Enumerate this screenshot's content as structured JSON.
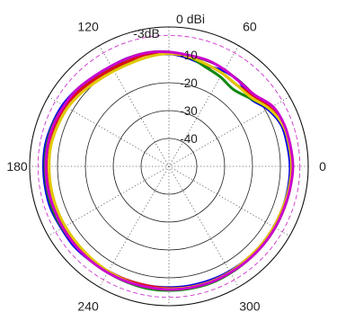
{
  "chart_data": {
    "type": "polar-line",
    "unit_label": "0 dBi",
    "r_range": [
      -50,
      0
    ],
    "r_ticks": [
      -40,
      -30,
      -20,
      -10
    ],
    "r_tick_labels": [
      "-40",
      "-30",
      "-20",
      "-10"
    ],
    "angle_ticks": [
      0,
      60,
      120,
      180,
      240,
      300
    ],
    "angle_tick_labels": [
      "0",
      "60",
      "120",
      "180",
      "240",
      "300"
    ],
    "grid": true,
    "reference": {
      "label": "-3dB",
      "value": -3,
      "color": "#cc33cc"
    },
    "series": [
      {
        "color": "#0000ee",
        "angles": [
          0,
          10,
          20,
          30,
          40,
          50,
          60,
          70,
          80,
          90,
          100,
          110,
          120,
          130,
          140,
          150,
          160,
          170,
          180,
          190,
          200,
          210,
          220,
          230,
          240,
          250,
          260,
          270,
          280,
          290,
          300,
          310,
          320,
          330,
          340,
          350
        ],
        "values": [
          -6.5,
          -6.8,
          -7,
          -9,
          -12,
          -10.5,
          -10.5,
          -11.5,
          -10.5,
          -9.5,
          -9,
          -8.5,
          -8.5,
          -8,
          -7,
          -6,
          -5.5,
          -5,
          -5,
          -5,
          -5,
          -5.5,
          -5.5,
          -6,
          -6.5,
          -6.5,
          -6.5,
          -6.5,
          -6.5,
          -6.5,
          -6.5,
          -6.5,
          -6.5,
          -6.5,
          -6.5,
          -6.5
        ]
      },
      {
        "color": "#118811",
        "angles": [
          0,
          10,
          20,
          30,
          40,
          50,
          60,
          70,
          80,
          90,
          100,
          110,
          120,
          130,
          140,
          150,
          160,
          170,
          180,
          190,
          200,
          210,
          220,
          230,
          240,
          250,
          260,
          270,
          280,
          290,
          300,
          310,
          320,
          330,
          340,
          350
        ],
        "values": [
          -5.8,
          -6,
          -6.5,
          -8.5,
          -12,
          -14,
          -13,
          -12,
          -10,
          -9,
          -8.5,
          -8.5,
          -9,
          -8.5,
          -7.5,
          -6.5,
          -5.8,
          -5.5,
          -5.5,
          -5.5,
          -5.5,
          -5.8,
          -6,
          -6,
          -6,
          -5.8,
          -5.5,
          -5.5,
          -5.5,
          -5.5,
          -5.8,
          -6,
          -6,
          -6,
          -6,
          -5.8
        ]
      },
      {
        "color": "#dd1111",
        "angles": [
          0,
          10,
          20,
          30,
          40,
          50,
          60,
          70,
          80,
          90,
          100,
          110,
          120,
          130,
          140,
          150,
          160,
          170,
          180,
          190,
          200,
          210,
          220,
          230,
          240,
          250,
          260,
          270,
          280,
          290,
          300,
          310,
          320,
          330,
          340,
          350
        ],
        "values": [
          -5.8,
          -6,
          -6.5,
          -8,
          -10.5,
          -12,
          -11.5,
          -11,
          -10,
          -9.5,
          -9,
          -9.5,
          -9.5,
          -9,
          -8,
          -7,
          -6.5,
          -6,
          -6,
          -6,
          -6,
          -6.5,
          -6.5,
          -6.5,
          -6.5,
          -6.5,
          -6.5,
          -6.2,
          -6,
          -6,
          -6.2,
          -6.5,
          -6.5,
          -6.5,
          -6.5,
          -6
        ]
      },
      {
        "color": "#e0c800",
        "angles": [
          0,
          10,
          20,
          30,
          40,
          50,
          60,
          70,
          80,
          90,
          100,
          110,
          120,
          130,
          140,
          150,
          160,
          170,
          180,
          190,
          200,
          210,
          220,
          230,
          240,
          250,
          260,
          270,
          280,
          290,
          300,
          310,
          320,
          330,
          340,
          350
        ],
        "values": [
          -6,
          -6.2,
          -6.5,
          -8.5,
          -11.5,
          -12,
          -11.5,
          -11,
          -10,
          -9.5,
          -10,
          -10.5,
          -10.5,
          -10,
          -9,
          -8,
          -7.5,
          -7,
          -7,
          -7,
          -7,
          -7,
          -7,
          -6.8,
          -6.5,
          -6.2,
          -6,
          -6,
          -6,
          -6,
          -6.2,
          -6.5,
          -6.5,
          -6.5,
          -6.5,
          -6.2
        ]
      },
      {
        "color": "#cc00cc",
        "angles": [
          0,
          10,
          20,
          30,
          40,
          50,
          60,
          70,
          80,
          90,
          100,
          110,
          120,
          130,
          140,
          150,
          160,
          170,
          180,
          190,
          200,
          210,
          220,
          230,
          240,
          250,
          260,
          270,
          280,
          290,
          300,
          310,
          320,
          330,
          340,
          350
        ],
        "values": [
          -5.5,
          -5.8,
          -6,
          -7,
          -10,
          -10.5,
          -10,
          -9.5,
          -9.5,
          -9,
          -8.5,
          -8.5,
          -8.5,
          -8,
          -7,
          -6.5,
          -6,
          -5.8,
          -5.8,
          -5.8,
          -6,
          -6,
          -6,
          -6,
          -6,
          -6,
          -6,
          -5.8,
          -5.8,
          -5.8,
          -6,
          -6,
          -6,
          -6,
          -6,
          -5.8
        ]
      }
    ]
  }
}
